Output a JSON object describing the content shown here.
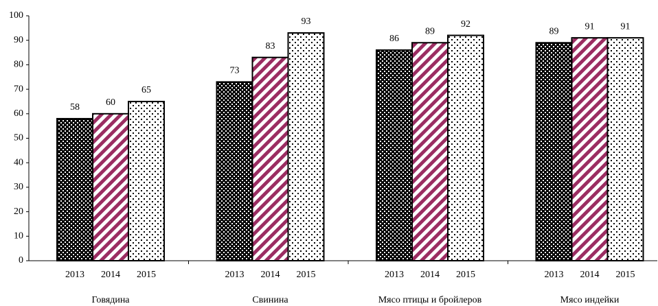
{
  "chart_data": {
    "type": "bar",
    "categories": [
      "Говядина",
      "Свинина",
      "Мясо птицы и бройлеров",
      "Мясо индейки"
    ],
    "series": [
      {
        "name": "2013",
        "color": "#000000",
        "values": [
          58,
          73,
          86,
          89
        ]
      },
      {
        "name": "2014",
        "color": "#9b2d62",
        "values": [
          60,
          83,
          89,
          91
        ]
      },
      {
        "name": "2015",
        "color": "#000000",
        "values": [
          65,
          93,
          92,
          91
        ]
      }
    ],
    "ylim": [
      0,
      100
    ],
    "yticks": [
      0,
      10,
      20,
      30,
      40,
      50,
      60,
      70,
      80,
      90,
      100
    ],
    "grid": false
  }
}
